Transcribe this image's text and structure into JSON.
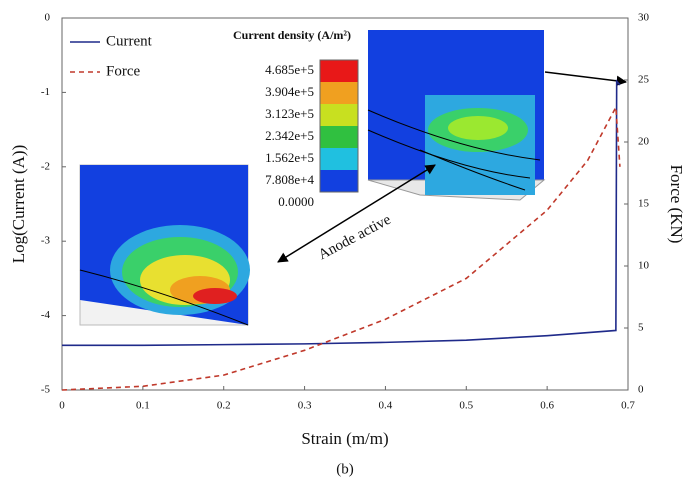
{
  "chart_data": {
    "type": "line",
    "xlabel": "Strain (m/m)",
    "ylabel": "Log(Current (A))",
    "y2label": "Force (KN)",
    "caption": "(b)",
    "xlim": [
      0,
      0.7
    ],
    "xticks": [
      0,
      0.1,
      0.2,
      0.3,
      0.4,
      0.5,
      0.6,
      0.7
    ],
    "ylim": [
      -5,
      0
    ],
    "yticks": [
      -5,
      -4,
      -3,
      -2,
      -1,
      0
    ],
    "y2lim": [
      0,
      30
    ],
    "y2ticks": [
      0,
      5,
      10,
      15,
      20,
      25,
      30
    ],
    "legend": "top-left",
    "series": [
      {
        "name": "Current",
        "color": "#1f2a8a",
        "dash": false,
        "x": [
          0,
          0.1,
          0.2,
          0.3,
          0.4,
          0.5,
          0.6,
          0.685,
          0.686,
          0.69
        ],
        "values": [
          -4.4,
          -4.4,
          -4.39,
          -4.38,
          -4.36,
          -4.33,
          -4.27,
          -4.2,
          -0.85,
          -0.9
        ]
      },
      {
        "name": "Force",
        "color": "#c0392b",
        "dash": true,
        "axis": "y2",
        "x": [
          0,
          0.1,
          0.2,
          0.3,
          0.4,
          0.5,
          0.6,
          0.65,
          0.685,
          0.69
        ],
        "values": [
          0,
          0.3,
          1.2,
          3.2,
          5.7,
          9,
          14.5,
          18.5,
          22.8,
          18
        ]
      }
    ],
    "annotations": {
      "inset_title": "Current density (A/m²)",
      "colorbar_labels": [
        "4.685e+5",
        "3.904e+5",
        "3.123e+5",
        "2.342e+5",
        "1.562e+5",
        "7.808e+4",
        "0.0000"
      ],
      "arrow_label": "Anode active"
    }
  }
}
